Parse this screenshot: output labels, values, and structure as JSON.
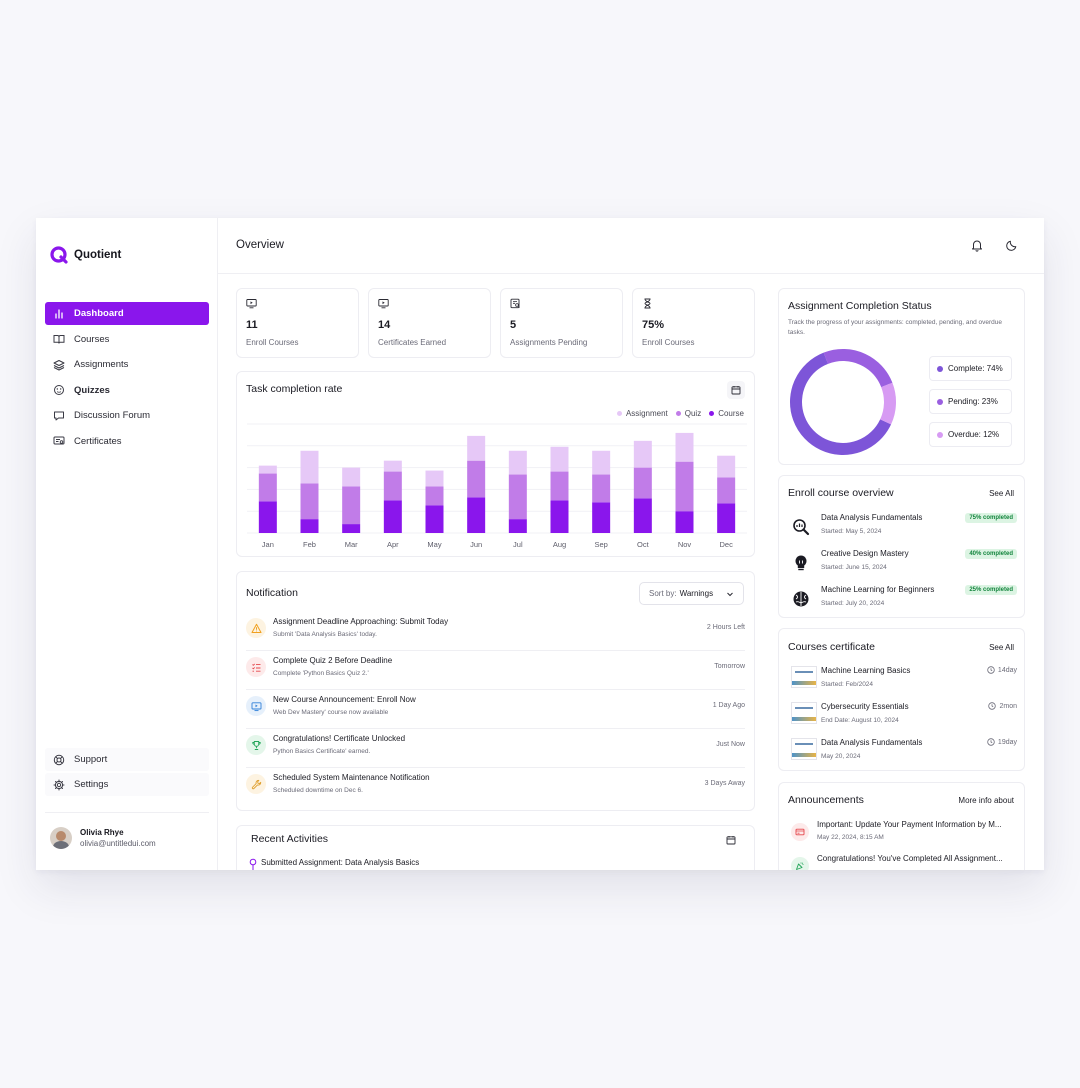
{
  "app": {
    "name": "Quotient",
    "brand_color": "#8a16ec"
  },
  "sidebar": {
    "items": [
      {
        "label": "Dashboard",
        "icon": "bar-chart-icon",
        "active": true
      },
      {
        "label": "Courses",
        "icon": "book-icon"
      },
      {
        "label": "Assignments",
        "icon": "layers-icon"
      },
      {
        "label": "Quizzes",
        "icon": "puzzle-icon"
      },
      {
        "label": "Discussion Forum",
        "icon": "message-icon"
      },
      {
        "label": "Certificates",
        "icon": "certificate-icon"
      }
    ],
    "bottom": [
      {
        "label": "Support",
        "icon": "lifebuoy-icon"
      },
      {
        "label": "Settings",
        "icon": "gear-icon"
      }
    ],
    "user": {
      "name": "Olivia Rhye",
      "email": "olivia@untitledui.com"
    }
  },
  "header": {
    "title": "Overview"
  },
  "stats": [
    {
      "value": "11",
      "label": "Enroll Courses",
      "icon": "monitor-play-icon"
    },
    {
      "value": "14",
      "label": "Certificates Earned",
      "icon": "monitor-play-icon"
    },
    {
      "value": "5",
      "label": "Assignments Pending",
      "icon": "clipboard-search-icon"
    },
    {
      "value": "75%",
      "label": "Enroll Courses",
      "icon": "hourglass-icon"
    }
  ],
  "task_chart": {
    "title": "Task completion rate",
    "legend": [
      "Assignment",
      "Quiz",
      "Course"
    ]
  },
  "chart_data": {
    "type": "bar",
    "stacked": true,
    "categories": [
      "Jan",
      "Feb",
      "Mar",
      "Apr",
      "May",
      "Jun",
      "Jul",
      "Aug",
      "Sep",
      "Oct",
      "Nov",
      "Dec"
    ],
    "series": [
      {
        "name": "Course",
        "color": "#8a16ec",
        "values": [
          32,
          14,
          9,
          33,
          28,
          36,
          14,
          33,
          31,
          35,
          22,
          30
        ]
      },
      {
        "name": "Quiz",
        "color": "#c17ce8",
        "values": [
          28,
          36,
          38,
          29,
          19,
          37,
          45,
          29,
          28,
          31,
          50,
          26
        ]
      },
      {
        "name": "Assignment",
        "color": "#e6c8f7",
        "values": [
          8,
          33,
          19,
          11,
          16,
          25,
          24,
          25,
          24,
          27,
          29,
          22
        ]
      }
    ],
    "ylim": [
      0,
      110
    ],
    "grid": true,
    "legend_position": "top-right"
  },
  "notifications": {
    "title": "Notification",
    "sort_prefix": "Sort by:",
    "sort_value": "Warnings",
    "items": [
      {
        "title": "Assignment Deadline Approaching: Submit Today",
        "sub": "Submit 'Data Analysis Basics' today.",
        "time": "2 Hours Left",
        "icon": "warning-icon",
        "color": "#f0a020",
        "bg": "#fdf3e1"
      },
      {
        "title": "Complete Quiz 2 Before Deadline",
        "sub": "Complete 'Python Basics Quiz 2.'",
        "time": "Tomorrow",
        "icon": "list-check-icon",
        "color": "#e5484d",
        "bg": "#fdeaea"
      },
      {
        "title": "New Course Announcement: Enroll Now",
        "sub": "Web Dev Mastery' course now available",
        "time": "1 Day Ago",
        "icon": "monitor-play-icon",
        "color": "#2f7fd8",
        "bg": "#e6f0fb"
      },
      {
        "title": "Congratulations! Certificate Unlocked",
        "sub": "Python Basics Certificate' earned.",
        "time": "Just Now",
        "icon": "trophy-icon",
        "color": "#23a559",
        "bg": "#e4f6ea"
      },
      {
        "title": "Scheduled System Maintenance Notification",
        "sub": "Scheduled downtime on Dec 6.",
        "time": "3 Days Away",
        "icon": "wrench-icon",
        "color": "#e0a030",
        "bg": "#fdf3e1"
      }
    ]
  },
  "recent": {
    "title": "Recent Activities",
    "first_item": "Submitted Assignment: Data Analysis Basics"
  },
  "completion": {
    "title": "Assignment Completion Status",
    "desc": "Track the progress of your assignments: completed, pending, and overdue tasks.",
    "items": [
      {
        "label": "Complete: 74%",
        "color": "#7d55d8",
        "value": 74
      },
      {
        "label": "Pending: 23%",
        "color": "#9a5fe0",
        "value": 23
      },
      {
        "label": "Overdue: 12%",
        "color": "#d79bf3",
        "value": 12
      }
    ]
  },
  "enroll": {
    "title": "Enroll course overview",
    "see_all": "See All",
    "items": [
      {
        "name": "Data Analysis Fundamentals",
        "date": "Started: May 5, 2024",
        "badge": "75% completed",
        "icon": "magnifier-chart-icon"
      },
      {
        "name": "Creative Design Mastery",
        "date": "Started: June 15, 2024",
        "badge": "40% completed",
        "icon": "lightbulb-icon"
      },
      {
        "name": "Machine Learning for Beginners",
        "date": "Started: July 20, 2024",
        "badge": "25% completed",
        "icon": "brain-icon"
      }
    ]
  },
  "certs": {
    "title": "Courses certificate",
    "see_all": "See All",
    "items": [
      {
        "name": "Machine Learning Basics",
        "date": "Started: Feb/2024",
        "time": "14day"
      },
      {
        "name": "Cybersecurity Essentials",
        "date": "End Date: August 10, 2024",
        "time": "2mon"
      },
      {
        "name": "Data Analysis Fundamentals",
        "date": "May 20, 2024",
        "time": "19day"
      }
    ]
  },
  "announcements": {
    "title": "Announcements",
    "more": "More info about",
    "items": [
      {
        "title": "Important: Update Your Payment Information by M...",
        "date": "May 22, 2024, 8:15 AM",
        "icon": "credit-card-icon",
        "color": "#e5484d",
        "bg": "#fdeaea"
      },
      {
        "title": "Congratulations! You've Completed All Assignment...",
        "date": "",
        "icon": "party-icon",
        "color": "#23a559",
        "bg": "#e4f6ea"
      }
    ]
  }
}
